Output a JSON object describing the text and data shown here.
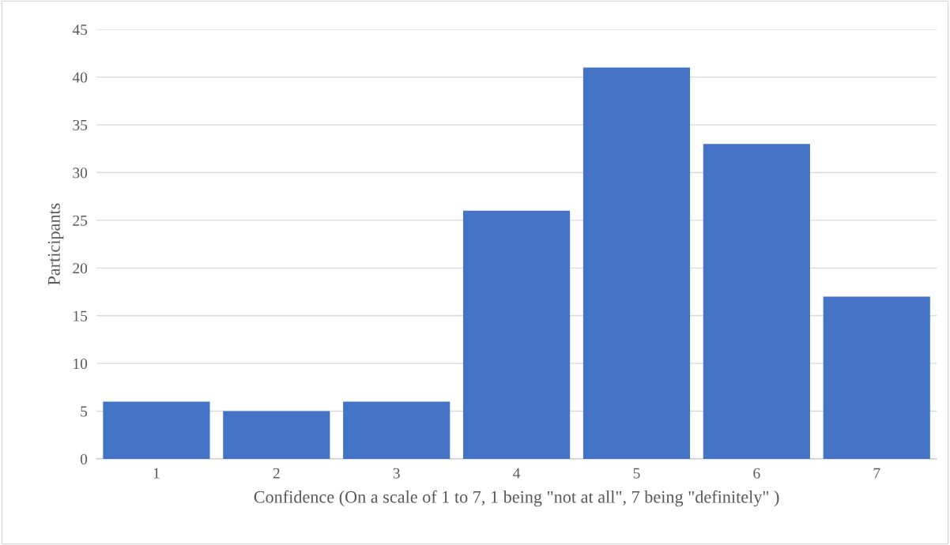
{
  "chart_data": {
    "type": "bar",
    "xlabel": "Confidence (On a scale of 1 to 7, 1 being \"not at all\", 7 being \"definitely\" )",
    "ylabel": "Participants",
    "categories": [
      "1",
      "2",
      "3",
      "4",
      "5",
      "6",
      "7"
    ],
    "values": [
      6,
      5,
      6,
      26,
      41,
      33,
      17
    ],
    "color": "#4472c4",
    "ylim": [
      0,
      45
    ],
    "yticks": [
      0,
      5,
      10,
      15,
      20,
      25,
      30,
      35,
      40,
      45
    ],
    "grid": "y",
    "legend": false
  }
}
